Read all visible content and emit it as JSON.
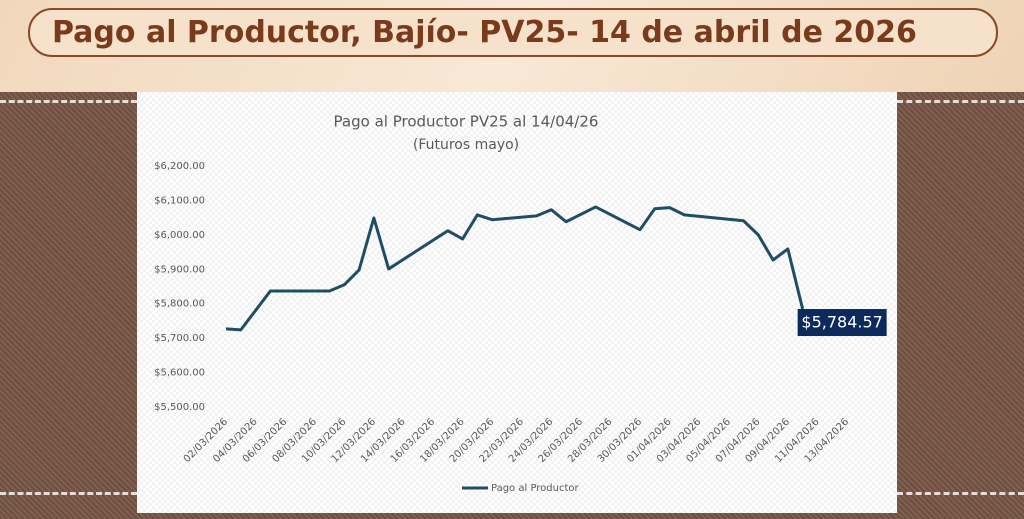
{
  "header": {
    "title": "Pago al Productor, Bajío- PV25- 14 de abril de 2026"
  },
  "chart_data": {
    "type": "line",
    "title": "Pago al Productor PV25 al 14/04/26",
    "subtitle": "(Futuros mayo)",
    "x": [
      "02/03/2026",
      "03/03/2026",
      "05/03/2026",
      "09/03/2026",
      "10/03/2026",
      "11/03/2026",
      "12/03/2026",
      "13/03/2026",
      "17/03/2026",
      "18/03/2026",
      "19/03/2026",
      "20/03/2026",
      "23/03/2026",
      "24/03/2026",
      "25/03/2026",
      "27/03/2026",
      "30/03/2026",
      "31/03/2026",
      "01/04/2026",
      "02/04/2026",
      "06/04/2026",
      "07/04/2026",
      "08/04/2026",
      "09/04/2026",
      "10/04/2026"
    ],
    "series": [
      {
        "name": "Pago al Productor",
        "color": "#1e4d64",
        "values": [
          5727,
          5724,
          5837,
          5837,
          5855,
          5898,
          6049,
          5901,
          6012,
          5988,
          6058,
          6044,
          6055,
          6073,
          6038,
          6081,
          6015,
          6076,
          6079,
          6058,
          6041,
          6000,
          5927,
          5959,
          5784.57
        ],
        "value_labels": [
          null,
          null,
          null,
          null,
          null,
          null,
          null,
          null,
          null,
          null,
          null,
          null,
          null,
          null,
          null,
          null,
          null,
          null,
          null,
          null,
          null,
          null,
          null,
          null,
          "$5,784.57"
        ]
      }
    ],
    "xlim": [
      "02/03/2026",
      "13/04/2026"
    ],
    "xticks": [
      "02/03/2026",
      "04/03/2026",
      "06/03/2026",
      "08/03/2026",
      "10/03/2026",
      "12/03/2026",
      "14/03/2026",
      "16/03/2026",
      "18/03/2026",
      "20/03/2026",
      "22/03/2026",
      "24/03/2026",
      "26/03/2026",
      "28/03/2026",
      "30/03/2026",
      "01/04/2026",
      "03/04/2026",
      "05/04/2026",
      "07/04/2026",
      "09/04/2026",
      "11/04/2026",
      "13/04/2026"
    ],
    "ylim": [
      5500,
      6200
    ],
    "yticks": [
      {
        "value": 5500,
        "label": "$5,500.00"
      },
      {
        "value": 5600,
        "label": "$5,600.00"
      },
      {
        "value": 5700,
        "label": "$5,700.00"
      },
      {
        "value": 5800,
        "label": "$5,800.00"
      },
      {
        "value": 5900,
        "label": "$5,900.00"
      },
      {
        "value": 6000,
        "label": "$6,000.00"
      },
      {
        "value": 6100,
        "label": "$6,100.00"
      },
      {
        "value": 6200,
        "label": "$6,200.00"
      }
    ],
    "grid": false,
    "legend": "bottom",
    "label_color": "#0d2a5c"
  }
}
